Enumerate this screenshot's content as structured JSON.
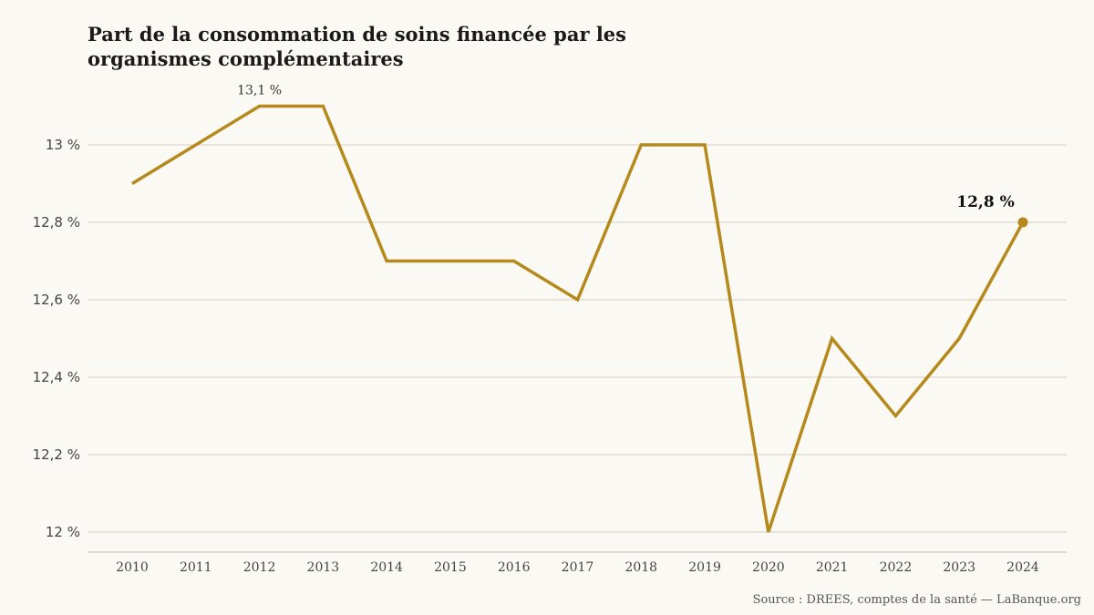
{
  "chart_data": {
    "type": "line",
    "title": "Part de la consommation de soins financée par les organismes complémentaires",
    "xlabel": "",
    "ylabel": "",
    "x": [
      "2010",
      "2011",
      "2012",
      "2013",
      "2014",
      "2015",
      "2016",
      "2017",
      "2018",
      "2019",
      "2020",
      "2021",
      "2022",
      "2023",
      "2024"
    ],
    "series": [
      {
        "values": [
          12.9,
          13.0,
          13.1,
          13.1,
          12.7,
          12.7,
          12.7,
          12.6,
          13.0,
          13.0,
          12.0,
          12.5,
          12.3,
          12.5,
          12.8
        ]
      }
    ],
    "y_ticks": [
      {
        "value": 12.0,
        "label": "12 %"
      },
      {
        "value": 12.2,
        "label": "12,2 %"
      },
      {
        "value": 12.4,
        "label": "12,4 %"
      },
      {
        "value": 12.6,
        "label": "12,6 %"
      },
      {
        "value": 12.8,
        "label": "12,8 %"
      },
      {
        "value": 13.0,
        "label": "13 %"
      }
    ],
    "ylim": [
      11.95,
      13.16
    ],
    "grid": true,
    "legend": "none",
    "annotations": [
      {
        "x": "2012",
        "value": 13.1,
        "label": "13,1 %"
      },
      {
        "x": "2024",
        "value": 12.8,
        "label": "12,8 %"
      }
    ],
    "colors": {
      "line": "#b5891c",
      "grid": "#d4d0c4",
      "background": "#fbf9f3"
    },
    "source": "Source : DREES, comptes de la santé — LaBanque.org"
  }
}
